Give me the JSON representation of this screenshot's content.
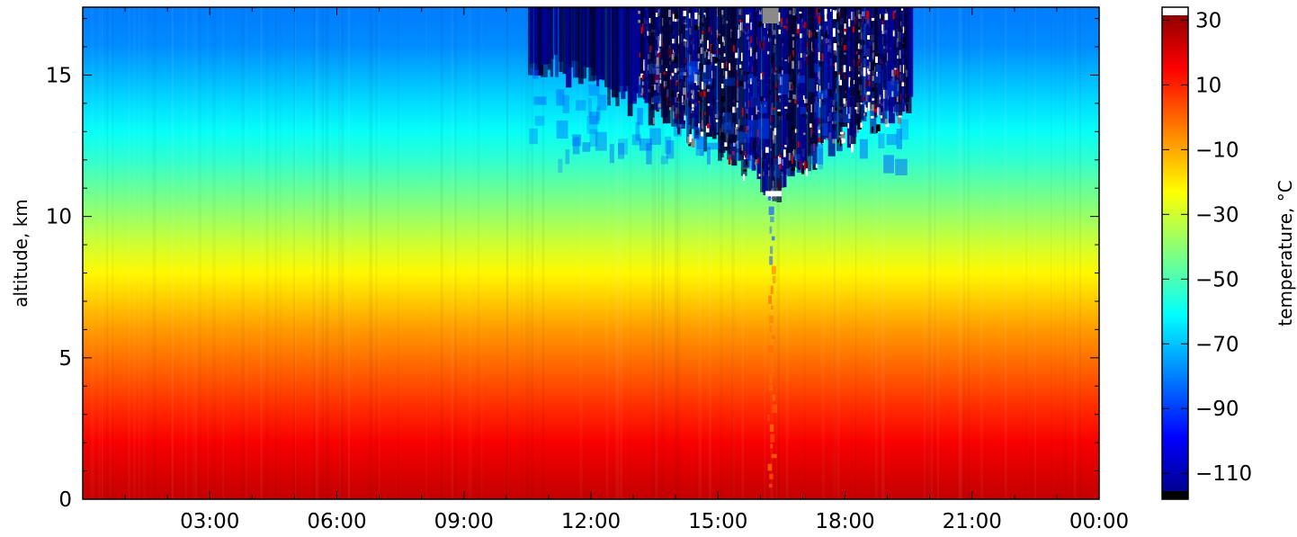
{
  "chart_data": {
    "type": "heatmap",
    "title": "",
    "xlabel": "",
    "ylabel": "altitude, km",
    "x_ticks": [
      "03:00",
      "06:00",
      "09:00",
      "12:00",
      "15:00",
      "18:00",
      "21:00",
      "00:00"
    ],
    "x_range": [
      "00:00",
      "24:00"
    ],
    "y_ticks": [
      0,
      5,
      10,
      15
    ],
    "ylim": [
      0,
      17.4
    ],
    "colorbar": {
      "label": "temperature, °C",
      "ticks": [
        30,
        10,
        -10,
        -30,
        -50,
        -70,
        -90,
        -110
      ],
      "range": [
        -118,
        34
      ],
      "colormap": "jet",
      "over_color": "#ffffff",
      "under_color": "#000000"
    },
    "profile": {
      "altitude_km": [
        0,
        1,
        2,
        3,
        4,
        5,
        6,
        7,
        8,
        9,
        10,
        11,
        12,
        13,
        14,
        15,
        16,
        17
      ],
      "temperature_c": [
        24,
        20,
        16,
        10,
        4,
        -2,
        -8,
        -15,
        -22,
        -30,
        -38,
        -46,
        -54,
        -60,
        -66,
        -72,
        -78,
        -80
      ]
    },
    "convective_event": {
      "start": "10:30",
      "end": "19:30",
      "core": "16:15",
      "min_altitude_km": 10.5
    }
  }
}
